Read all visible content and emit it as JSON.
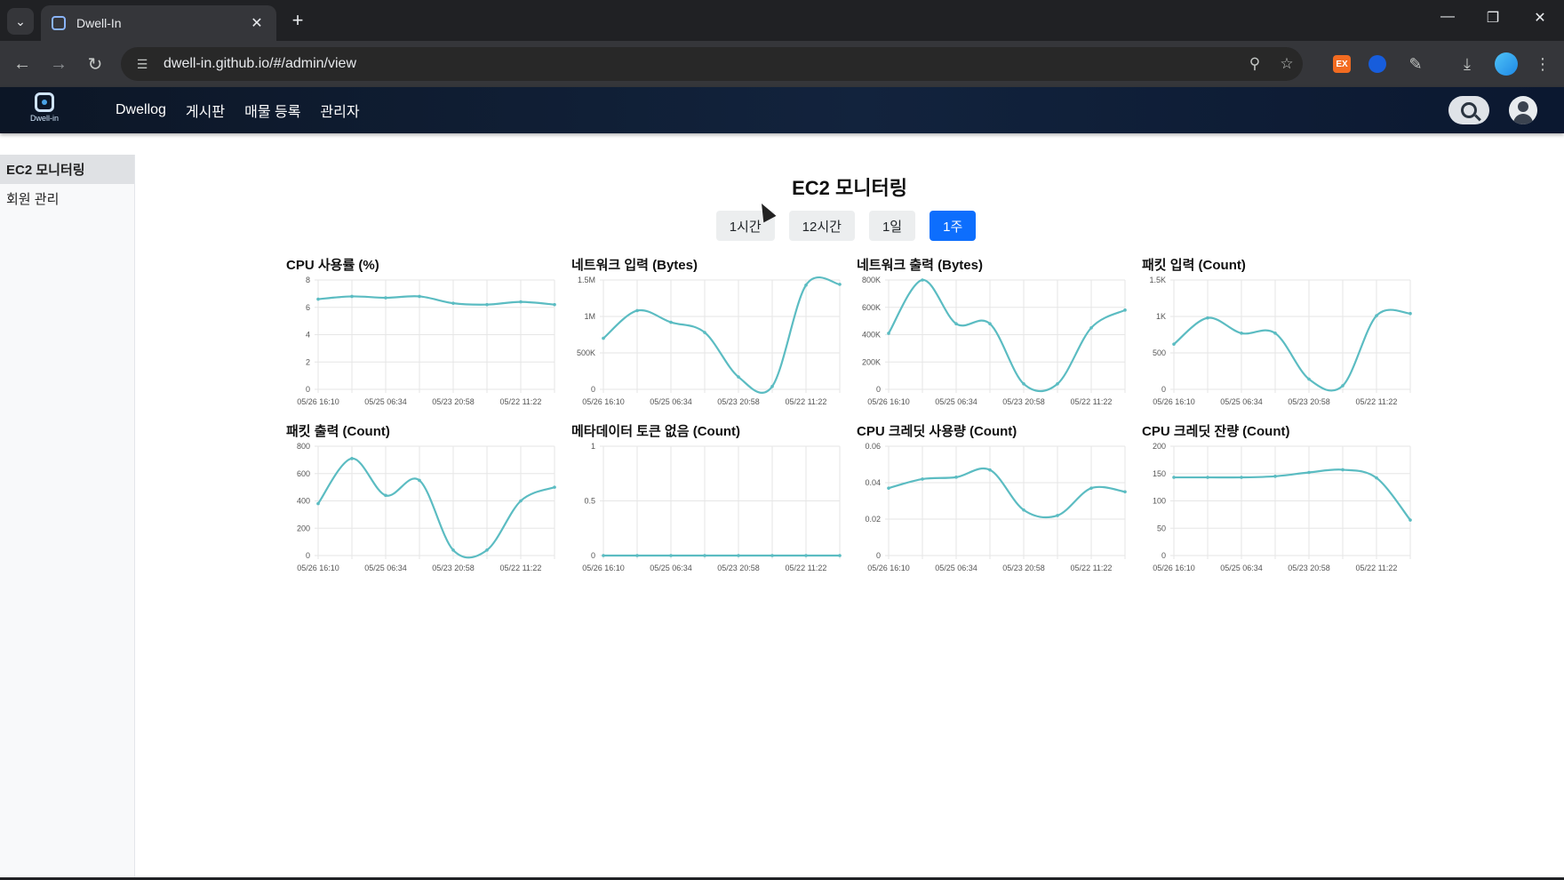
{
  "browser": {
    "tab_title": "Dwell-In",
    "url": "dwell-in.github.io/#/admin/view",
    "ext_label": "EX"
  },
  "app": {
    "logo_text": "Dwell-in",
    "menu": [
      "Dwellog",
      "게시판",
      "매물 등록",
      "관리자"
    ]
  },
  "sidebar": {
    "items": [
      {
        "label": "EC2 모니터링",
        "active": true
      },
      {
        "label": "회원 관리",
        "active": false
      }
    ]
  },
  "main": {
    "title": "EC2 모니터링",
    "ranges": [
      {
        "label": "1시간",
        "active": false
      },
      {
        "label": "12시간",
        "active": false
      },
      {
        "label": "1일",
        "active": false
      },
      {
        "label": "1주",
        "active": true
      }
    ]
  },
  "colors": {
    "line": "#5bbcc2",
    "grid": "#e6e6e6",
    "active_button": "#0d6efd"
  },
  "chart_data": [
    {
      "type": "line",
      "title": "CPU 사용률 (%)",
      "x": [
        "05/26 16:10",
        "",
        "05/25 06:34",
        "",
        "05/23 20:58",
        "",
        "05/22 11:22",
        ""
      ],
      "y": [
        6.6,
        6.8,
        6.7,
        6.8,
        6.3,
        6.2,
        6.4,
        6.2
      ],
      "yticks": [
        0,
        2,
        4,
        6,
        8
      ],
      "ytick_labels": [
        "0",
        "2",
        "4",
        "6",
        "8"
      ],
      "ylim": [
        0,
        8
      ]
    },
    {
      "type": "line",
      "title": "네트워크 입력 (Bytes)",
      "x": [
        "05/26 16:10",
        "",
        "05/25 06:34",
        "",
        "05/23 20:58",
        "",
        "05/22 11:22",
        ""
      ],
      "y": [
        700000,
        1080000,
        920000,
        780000,
        170000,
        40000,
        1430000,
        1440000
      ],
      "yticks": [
        0,
        500000,
        1000000,
        1500000
      ],
      "ytick_labels": [
        "0",
        "500K",
        "1M",
        "1.5M"
      ],
      "ylim": [
        0,
        1500000
      ]
    },
    {
      "type": "line",
      "title": "네트워크 출력 (Bytes)",
      "x": [
        "05/26 16:10",
        "",
        "05/25 06:34",
        "",
        "05/23 20:58",
        "",
        "05/22 11:22",
        ""
      ],
      "y": [
        410000,
        800000,
        480000,
        480000,
        40000,
        40000,
        450000,
        580000
      ],
      "yticks": [
        0,
        200000,
        400000,
        600000,
        800000
      ],
      "ytick_labels": [
        "0",
        "200K",
        "400K",
        "600K",
        "800K"
      ],
      "ylim": [
        0,
        800000
      ]
    },
    {
      "type": "line",
      "title": "패킷 입력 (Count)",
      "x": [
        "05/26 16:10",
        "",
        "05/25 06:34",
        "",
        "05/23 20:58",
        "",
        "05/22 11:22",
        ""
      ],
      "y": [
        620,
        980,
        770,
        770,
        140,
        50,
        1010,
        1040
      ],
      "yticks": [
        0,
        500,
        1000,
        1500
      ],
      "ytick_labels": [
        "0",
        "500",
        "1K",
        "1.5K"
      ],
      "ylim": [
        0,
        1500
      ]
    },
    {
      "type": "line",
      "title": "패킷 출력 (Count)",
      "x": [
        "05/26 16:10",
        "",
        "05/25 06:34",
        "",
        "05/23 20:58",
        "",
        "05/22 11:22",
        ""
      ],
      "y": [
        380,
        710,
        440,
        550,
        40,
        40,
        400,
        500
      ],
      "yticks": [
        0,
        200,
        400,
        600,
        800
      ],
      "ytick_labels": [
        "0",
        "200",
        "400",
        "600",
        "800"
      ],
      "ylim": [
        0,
        800
      ]
    },
    {
      "type": "line",
      "title": "메타데이터 토큰 없음 (Count)",
      "x": [
        "05/26 16:10",
        "",
        "05/25 06:34",
        "",
        "05/23 20:58",
        "",
        "05/22 11:22",
        ""
      ],
      "y": [
        0,
        0,
        0,
        0,
        0,
        0,
        0,
        0
      ],
      "yticks": [
        0,
        0.5,
        1
      ],
      "ytick_labels": [
        "0",
        "0.5",
        "1"
      ],
      "ylim": [
        0,
        1
      ]
    },
    {
      "type": "line",
      "title": "CPU 크레딧 사용량 (Count)",
      "x": [
        "05/26 16:10",
        "",
        "05/25 06:34",
        "",
        "05/23 20:58",
        "",
        "05/22 11:22",
        ""
      ],
      "y": [
        0.037,
        0.042,
        0.043,
        0.047,
        0.025,
        0.022,
        0.037,
        0.035
      ],
      "yticks": [
        0,
        0.02,
        0.04,
        0.06
      ],
      "ytick_labels": [
        "0",
        "0.02",
        "0.04",
        "0.06"
      ],
      "ylim": [
        0,
        0.06
      ]
    },
    {
      "type": "line",
      "title": "CPU 크레딧 잔량 (Count)",
      "x": [
        "05/26 16:10",
        "",
        "05/25 06:34",
        "",
        "05/23 20:58",
        "",
        "05/22 11:22",
        ""
      ],
      "y": [
        143,
        143,
        143,
        145,
        152,
        157,
        142,
        65
      ],
      "yticks": [
        0,
        50,
        100,
        150,
        200
      ],
      "ytick_labels": [
        "0",
        "50",
        "100",
        "150",
        "200"
      ],
      "ylim": [
        0,
        200
      ]
    }
  ]
}
